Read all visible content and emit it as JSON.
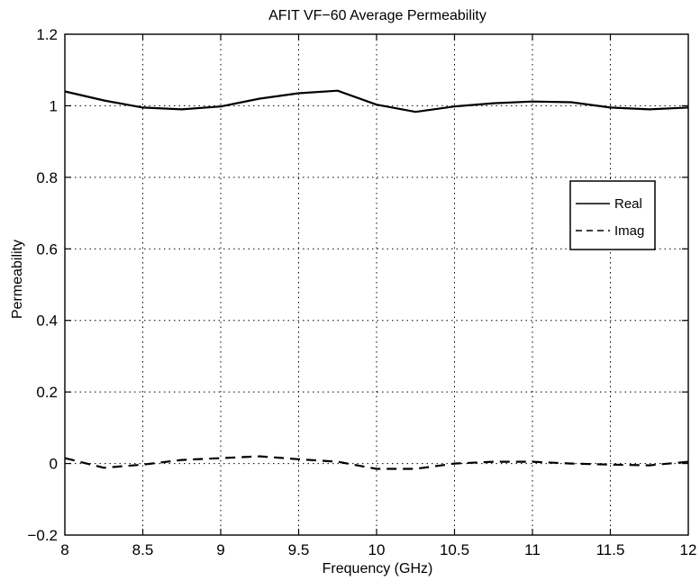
{
  "chart_data": {
    "type": "line",
    "title": "AFIT VF−60 Average Permeability",
    "xlabel": "Frequency (GHz)",
    "ylabel": "Permeability",
    "xlim": [
      8,
      12
    ],
    "ylim": [
      -0.2,
      1.2
    ],
    "xticks": [
      "8",
      "8.5",
      "9",
      "9.5",
      "10",
      "10.5",
      "11",
      "11.5",
      "12"
    ],
    "yticks": [
      "−0.2",
      "0",
      "0.2",
      "0.4",
      "0.6",
      "0.8",
      "1",
      "1.2"
    ],
    "grid": true,
    "legend_position": "right",
    "series": [
      {
        "name": "Real",
        "style": "solid",
        "color": "#000000",
        "x": [
          8.0,
          8.25,
          8.5,
          8.75,
          9.0,
          9.25,
          9.5,
          9.75,
          10.0,
          10.25,
          10.5,
          10.75,
          11.0,
          11.25,
          11.5,
          11.75,
          12.0
        ],
        "y": [
          1.04,
          1.015,
          0.995,
          0.99,
          0.998,
          1.02,
          1.035,
          1.042,
          1.003,
          0.983,
          0.998,
          1.007,
          1.012,
          1.01,
          0.995,
          0.99,
          0.995
        ]
      },
      {
        "name": "Imag",
        "style": "dashed",
        "color": "#000000",
        "x": [
          8.0,
          8.25,
          8.5,
          8.75,
          9.0,
          9.25,
          9.5,
          9.75,
          10.0,
          10.25,
          10.5,
          10.75,
          11.0,
          11.25,
          11.5,
          11.75,
          12.0
        ],
        "y": [
          0.015,
          -0.012,
          -0.003,
          0.01,
          0.015,
          0.02,
          0.012,
          0.005,
          -0.015,
          -0.015,
          0.0,
          0.005,
          0.005,
          0.0,
          -0.003,
          -0.005,
          0.005
        ]
      }
    ]
  }
}
